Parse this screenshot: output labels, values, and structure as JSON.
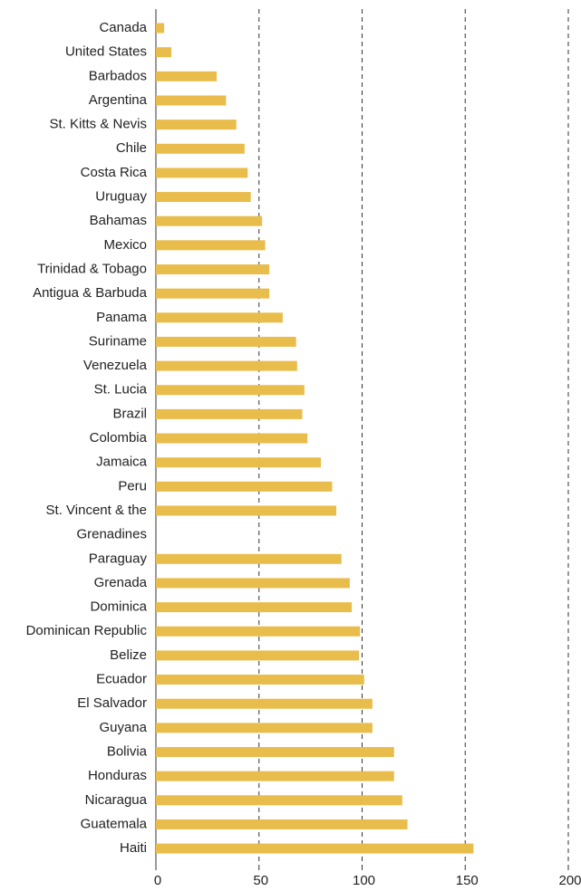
{
  "chart_data": {
    "type": "barh",
    "categories": [
      "Canada",
      "United States",
      "Barbados",
      "Argentina",
      "St. Kitts & Nevis",
      "Chile",
      "Costa Rica",
      "Uruguay",
      "Bahamas",
      "Mexico",
      "Trinidad & Tobago",
      "Antigua & Barbuda",
      "Panama",
      "Suriname",
      "Venezuela",
      "St. Lucia",
      "Brazil",
      "Colombia",
      "Jamaica",
      "Peru",
      "St. Vincent & the Grenadines",
      "Paraguay",
      "Grenada",
      "Dominica",
      "Dominican Republic",
      "Belize",
      "Ecuador",
      "El Salvador",
      "Guyana",
      "Bolivia",
      "Honduras",
      "Nicaragua",
      "Guatemala",
      "Haiti"
    ],
    "values": [
      4,
      7.5,
      29.5,
      34,
      39,
      43,
      44.5,
      46,
      51.5,
      53,
      55,
      55,
      61.5,
      68,
      68.5,
      72,
      71,
      73.5,
      80,
      85.5,
      87.5,
      90,
      94,
      95,
      99,
      98.5,
      101,
      105,
      105,
      115.5,
      115.5,
      119.5,
      122,
      154
    ],
    "color": "#e9bd4c",
    "xlim": [
      0,
      200
    ],
    "xticks": [
      0,
      50,
      100,
      150,
      200
    ],
    "grid": true
  }
}
